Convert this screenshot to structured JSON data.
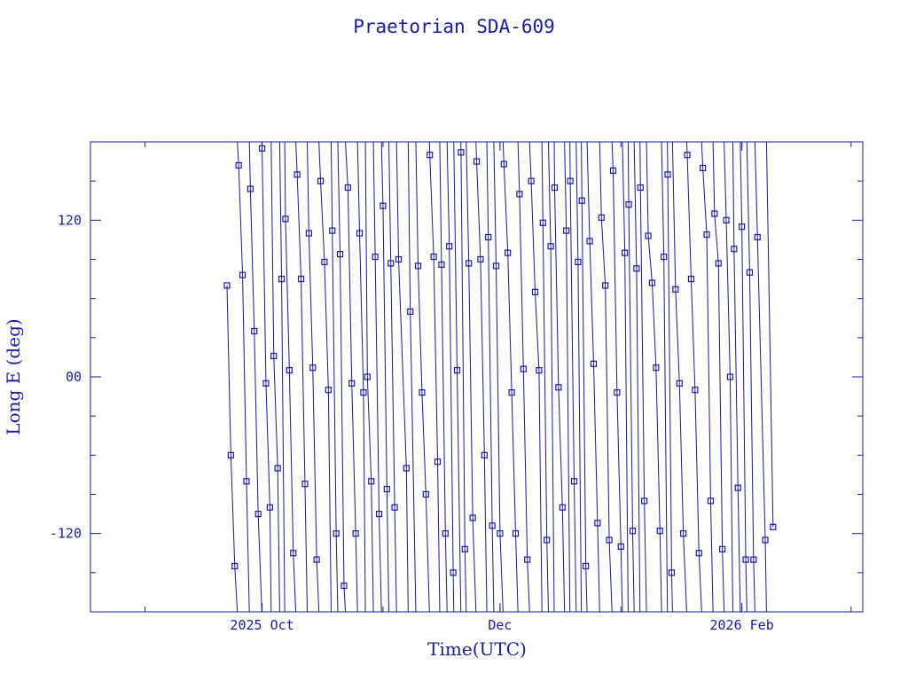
{
  "chart_data": {
    "type": "line",
    "title": "Praetorian SDA-609",
    "xlabel": "Time(UTC)",
    "ylabel": "Long E (deg)",
    "x_range": [
      "2025-08-18",
      "2026-03-04"
    ],
    "ylim": [
      -180,
      180
    ],
    "x_tick_labels": [
      {
        "date": "2025-10-01",
        "label": "2025 Oct"
      },
      {
        "date": "2025-12-01",
        "label": "Dec"
      },
      {
        "date": "2026-02-01",
        "label": "2026 Feb"
      }
    ],
    "x_minor_ticks": [
      "2025-09-01",
      "2025-10-01",
      "2025-11-01",
      "2025-12-01",
      "2026-01-01",
      "2026-02-01",
      "2026-03-01"
    ],
    "y_ticks": [
      {
        "value": 120,
        "label": "120"
      },
      {
        "value": 0,
        "label": "00"
      },
      {
        "value": -120,
        "label": "-120"
      }
    ],
    "y_minor_ticks": [
      -150,
      -90,
      -60,
      -30,
      30,
      60,
      90,
      150
    ],
    "grid": false,
    "line_color": "#1a1aa6",
    "marker_color": "#1a1aa6",
    "series": [
      {
        "points": [
          [
            "2025-09-22",
            70
          ],
          [
            "2025-09-23",
            -60
          ],
          [
            "2025-09-24",
            -145
          ],
          [
            "2025-09-25",
            162
          ],
          [
            "2025-09-26",
            78
          ],
          [
            "2025-09-27",
            -80
          ],
          [
            "2025-09-28",
            144
          ],
          [
            "2025-09-29",
            35
          ],
          [
            "2025-09-30",
            -105
          ],
          [
            "2025-10-01",
            175
          ],
          [
            "2025-10-02",
            -5
          ],
          [
            "2025-10-03",
            -100
          ],
          [
            "2025-10-04",
            16
          ],
          [
            "2025-10-05",
            -70
          ],
          [
            "2025-10-06",
            75
          ],
          [
            "2025-10-07",
            121
          ],
          [
            "2025-10-08",
            5
          ],
          [
            "2025-10-09",
            -135
          ],
          [
            "2025-10-10",
            155
          ],
          [
            "2025-10-11",
            75
          ],
          [
            "2025-10-12",
            -82
          ],
          [
            "2025-10-13",
            110
          ],
          [
            "2025-10-14",
            7
          ],
          [
            "2025-10-15",
            -140
          ],
          [
            "2025-10-16",
            150
          ],
          [
            "2025-10-17",
            88
          ],
          [
            "2025-10-18",
            -10
          ],
          [
            "2025-10-19",
            112
          ],
          [
            "2025-10-20",
            -120
          ],
          [
            "2025-10-21",
            94
          ],
          [
            "2025-10-22",
            -160
          ],
          [
            "2025-10-23",
            145
          ],
          [
            "2025-10-24",
            -5
          ],
          [
            "2025-10-25",
            -120
          ],
          [
            "2025-10-26",
            110
          ],
          [
            "2025-10-27",
            -12
          ],
          [
            "2025-10-28",
            0
          ],
          [
            "2025-10-29",
            -80
          ],
          [
            "2025-10-30",
            92
          ],
          [
            "2025-10-31",
            -105
          ],
          [
            "2025-11-01",
            131
          ],
          [
            "2025-11-02",
            -86
          ],
          [
            "2025-11-03",
            87
          ],
          [
            "2025-11-04",
            -100
          ],
          [
            "2025-11-05",
            90
          ],
          [
            "2025-11-07",
            -70
          ],
          [
            "2025-11-08",
            50
          ],
          [
            "2025-11-10",
            85
          ],
          [
            "2025-11-11",
            -12
          ],
          [
            "2025-11-12",
            -90
          ],
          [
            "2025-11-13",
            170
          ],
          [
            "2025-11-14",
            92
          ],
          [
            "2025-11-15",
            -65
          ],
          [
            "2025-11-16",
            86
          ],
          [
            "2025-11-17",
            -120
          ],
          [
            "2025-11-18",
            100
          ],
          [
            "2025-11-19",
            -150
          ],
          [
            "2025-11-20",
            5
          ],
          [
            "2025-11-21",
            172
          ],
          [
            "2025-11-22",
            -132
          ],
          [
            "2025-11-23",
            87
          ],
          [
            "2025-11-24",
            -108
          ],
          [
            "2025-11-25",
            165
          ],
          [
            "2025-11-26",
            90
          ],
          [
            "2025-11-27",
            -60
          ],
          [
            "2025-11-28",
            107
          ],
          [
            "2025-11-29",
            -114
          ],
          [
            "2025-11-30",
            85
          ],
          [
            "2025-12-01",
            -120
          ],
          [
            "2025-12-02",
            163
          ],
          [
            "2025-12-03",
            95
          ],
          [
            "2025-12-04",
            -12
          ],
          [
            "2025-12-05",
            -120
          ],
          [
            "2025-12-06",
            140
          ],
          [
            "2025-12-07",
            6
          ],
          [
            "2025-12-08",
            -140
          ],
          [
            "2025-12-09",
            150
          ],
          [
            "2025-12-10",
            65
          ],
          [
            "2025-12-11",
            5
          ],
          [
            "2025-12-12",
            118
          ],
          [
            "2025-12-13",
            -125
          ],
          [
            "2025-12-14",
            100
          ],
          [
            "2025-12-15",
            145
          ],
          [
            "2025-12-16",
            -8
          ],
          [
            "2025-12-17",
            -100
          ],
          [
            "2025-12-18",
            112
          ],
          [
            "2025-12-19",
            150
          ],
          [
            "2025-12-20",
            -80
          ],
          [
            "2025-12-21",
            88
          ],
          [
            "2025-12-22",
            135
          ],
          [
            "2025-12-23",
            -145
          ],
          [
            "2025-12-24",
            104
          ],
          [
            "2025-12-25",
            10
          ],
          [
            "2025-12-26",
            -112
          ],
          [
            "2025-12-27",
            122
          ],
          [
            "2025-12-28",
            70
          ],
          [
            "2025-12-29",
            -125
          ],
          [
            "2025-12-30",
            158
          ],
          [
            "2025-12-31",
            -12
          ],
          [
            "2026-01-01",
            -130
          ],
          [
            "2026-01-02",
            95
          ],
          [
            "2026-01-03",
            132
          ],
          [
            "2026-01-04",
            -118
          ],
          [
            "2026-01-05",
            83
          ],
          [
            "2026-01-06",
            145
          ],
          [
            "2026-01-07",
            -95
          ],
          [
            "2026-01-08",
            108
          ],
          [
            "2026-01-09",
            72
          ],
          [
            "2026-01-10",
            7
          ],
          [
            "2026-01-11",
            -118
          ],
          [
            "2026-01-12",
            92
          ],
          [
            "2026-01-13",
            155
          ],
          [
            "2026-01-14",
            -150
          ],
          [
            "2026-01-15",
            67
          ],
          [
            "2026-01-16",
            -5
          ],
          [
            "2026-01-17",
            -120
          ],
          [
            "2026-01-18",
            170
          ],
          [
            "2026-01-19",
            75
          ],
          [
            "2026-01-20",
            -10
          ],
          [
            "2026-01-21",
            -135
          ],
          [
            "2026-01-22",
            160
          ],
          [
            "2026-01-23",
            109
          ],
          [
            "2026-01-24",
            -95
          ],
          [
            "2026-01-25",
            125
          ],
          [
            "2026-01-26",
            87
          ],
          [
            "2026-01-27",
            -132
          ],
          [
            "2026-01-28",
            120
          ],
          [
            "2026-01-29",
            0
          ],
          [
            "2026-01-30",
            98
          ],
          [
            "2026-01-31",
            -85
          ],
          [
            "2026-02-01",
            115
          ],
          [
            "2026-02-02",
            -140
          ],
          [
            "2026-02-03",
            80
          ],
          [
            "2026-02-04",
            -140
          ],
          [
            "2026-02-05",
            107
          ],
          [
            "2026-02-07",
            -125
          ],
          [
            "2026-02-09",
            -115
          ]
        ]
      }
    ]
  }
}
